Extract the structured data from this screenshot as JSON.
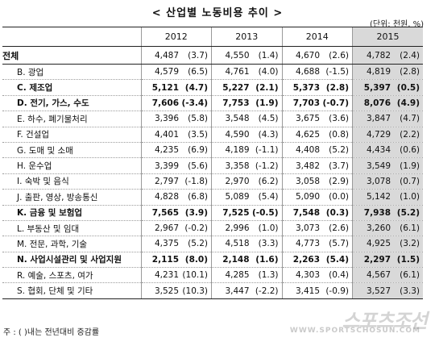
{
  "title": "< 산업별 노동비용 추이 >",
  "unit": "(단위: 천원, %)",
  "header": {
    "years": [
      "2012",
      "2013",
      "2014",
      "2015"
    ]
  },
  "rows": [
    {
      "label": "전체",
      "cells": [
        [
          "4,487",
          "(3.7)"
        ],
        [
          "4,550",
          "(1.4)"
        ],
        [
          "4,670",
          "(2.6)"
        ],
        [
          "4,782",
          "(2.4)"
        ]
      ]
    },
    {
      "label": "B. 광업",
      "cells": [
        [
          "4,579",
          "(6.5)"
        ],
        [
          "4,761",
          "(4.0)"
        ],
        [
          "4,688",
          "(-1.5)"
        ],
        [
          "4,819",
          "(2.8)"
        ]
      ]
    },
    {
      "label": "C. 제조업",
      "cells": [
        [
          "5,121",
          "(4.7)"
        ],
        [
          "5,227",
          "(2.1)"
        ],
        [
          "5,373",
          "(2.8)"
        ],
        [
          "5,397",
          "(0.5)"
        ]
      ]
    },
    {
      "label": "D. 전기, 가스, 수도",
      "cells": [
        [
          "7,606",
          "(-3.4)"
        ],
        [
          "7,753",
          "(1.9)"
        ],
        [
          "7,703",
          "(-0.7)"
        ],
        [
          "8,076",
          "(4.9)"
        ]
      ]
    },
    {
      "label": "E. 하수, 폐기물처리",
      "cells": [
        [
          "3,396",
          "(5.8)"
        ],
        [
          "3,548",
          "(4.5)"
        ],
        [
          "3,675",
          "(3.6)"
        ],
        [
          "3,847",
          "(4.7)"
        ]
      ]
    },
    {
      "label": "F. 건설업",
      "cells": [
        [
          "4,401",
          "(3.5)"
        ],
        [
          "4,590",
          "(4.3)"
        ],
        [
          "4,625",
          "(0.8)"
        ],
        [
          "4,729",
          "(2.2)"
        ]
      ]
    },
    {
      "label": "G. 도매 및 소매",
      "cells": [
        [
          "4,235",
          "(6.9)"
        ],
        [
          "4,189",
          "(-1.1)"
        ],
        [
          "4,408",
          "(5.2)"
        ],
        [
          "4,434",
          "(0.6)"
        ]
      ]
    },
    {
      "label": "H. 운수업",
      "cells": [
        [
          "3,399",
          "(5.6)"
        ],
        [
          "3,358",
          "(-1.2)"
        ],
        [
          "3,482",
          "(3.7)"
        ],
        [
          "3,549",
          "(1.9)"
        ]
      ]
    },
    {
      "label": "I. 숙박 및 음식",
      "cells": [
        [
          "2,797",
          "(-1.8)"
        ],
        [
          "2,970",
          "(6.2)"
        ],
        [
          "3,058",
          "(2.9)"
        ],
        [
          "3,078",
          "(0.7)"
        ]
      ]
    },
    {
      "label": "J. 출판, 영상, 방송통신",
      "cells": [
        [
          "4,828",
          "(6.8)"
        ],
        [
          "5,089",
          "(5.4)"
        ],
        [
          "5,090",
          "(0.0)"
        ],
        [
          "5,142",
          "(1.0)"
        ]
      ]
    },
    {
      "label": "K. 금융 및 보험업",
      "cells": [
        [
          "7,565",
          "(3.9)"
        ],
        [
          "7,525",
          "(-0.5)"
        ],
        [
          "7,548",
          "(0.3)"
        ],
        [
          "7,938",
          "(5.2)"
        ]
      ]
    },
    {
      "label": "L. 부동산 및 임대",
      "cells": [
        [
          "2,967",
          "(-0.2)"
        ],
        [
          "2,996",
          "(1.0)"
        ],
        [
          "3,073",
          "(2.6)"
        ],
        [
          "3,260",
          "(6.1)"
        ]
      ]
    },
    {
      "label": "M. 전문, 과학, 기술",
      "cells": [
        [
          "4,375",
          "(5.2)"
        ],
        [
          "4,518",
          "(3.3)"
        ],
        [
          "4,773",
          "(5.7)"
        ],
        [
          "4,925",
          "(3.2)"
        ]
      ]
    },
    {
      "label": "N. 사업시설관리 및 사업지원",
      "cells": [
        [
          "2,115",
          "(8.0)"
        ],
        [
          "2,148",
          "(1.6)"
        ],
        [
          "2,263",
          "(5.4)"
        ],
        [
          "2,297",
          "(1.5)"
        ]
      ]
    },
    {
      "label": "R. 예술, 스포츠, 여가",
      "cells": [
        [
          "4,231",
          "(10.1)"
        ],
        [
          "4,285",
          "(1.3)"
        ],
        [
          "4,303",
          "(0.4)"
        ],
        [
          "4,567",
          "(6.1)"
        ]
      ]
    },
    {
      "label": "S. 협회, 단체 및 기타",
      "cells": [
        [
          "3,525",
          "(10.3)"
        ],
        [
          "3,447",
          "(-2.2)"
        ],
        [
          "3,415",
          "(-0.9)"
        ],
        [
          "3,527",
          "(3.3)"
        ]
      ]
    }
  ],
  "note": "주 : ( )내는 전년대비 증감률",
  "watermark": {
    "logo": "스포츠조선",
    "url": "WWW.SPORTSCHOSUN.COM"
  }
}
